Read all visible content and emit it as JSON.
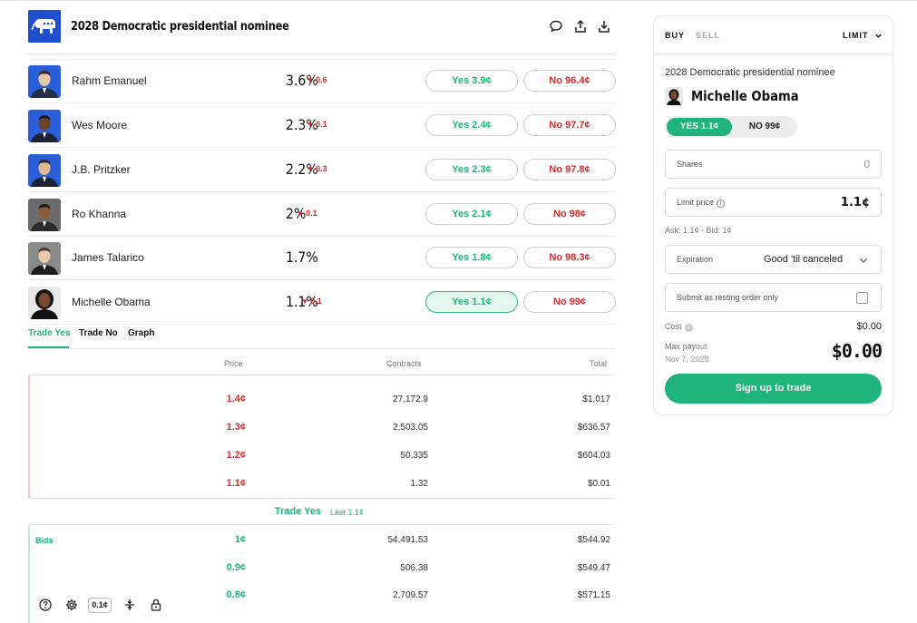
{
  "header": {
    "title": "2028 Democratic presidential nominee",
    "icons": [
      "comment-icon",
      "share-icon",
      "download-icon"
    ]
  },
  "candidates": [
    {
      "name": "Rahm Emanuel",
      "pct": "3.6%",
      "change": "0.6",
      "change_dir": "down",
      "yes": "Yes 3.9¢",
      "no": "No 96.4¢",
      "avatar_color": "#2b5fd9"
    },
    {
      "name": "Wes Moore",
      "pct": "2.3%",
      "change": "0.1",
      "change_dir": "down",
      "yes": "Yes 2.4¢",
      "no": "No 97.7¢",
      "avatar_color": "#2b5fd9"
    },
    {
      "name": "J.B. Pritzker",
      "pct": "2.2%",
      "change": "0.3",
      "change_dir": "down",
      "yes": "Yes 2.3¢",
      "no": "No 97.8¢",
      "avatar_color": "#2b5fd9"
    },
    {
      "name": "Ro Khanna",
      "pct": "2%",
      "change": "0.1",
      "change_dir": "down",
      "yes": "Yes 2.1¢",
      "no": "No 98¢",
      "avatar_color": "#6b6b6b"
    },
    {
      "name": "James Talarico",
      "pct": "1.7%",
      "change": "",
      "change_dir": "none",
      "yes": "Yes 1.8¢",
      "no": "No 98.3¢",
      "avatar_color": "#8a8a8a"
    },
    {
      "name": "Michelle Obama",
      "pct": "1.1%",
      "change": "0.1",
      "change_dir": "down",
      "yes": "Yes 1.1¢",
      "no": "No 99¢",
      "avatar_color": "#e9e9e9",
      "selected": true
    }
  ],
  "tabs": {
    "trade_yes": "Trade Yes",
    "trade_no": "Trade No",
    "graph": "Graph",
    "active": "trade_yes"
  },
  "orderbook": {
    "headers": {
      "price": "Price",
      "contracts": "Contracts",
      "total": "Total"
    },
    "asks": [
      {
        "price": "1.4¢",
        "contracts": "27,172.9",
        "total": "$1,017"
      },
      {
        "price": "1.3¢",
        "contracts": "2,503.05",
        "total": "$636.57"
      },
      {
        "price": "1.2¢",
        "contracts": "50,335",
        "total": "$604.03"
      },
      {
        "price": "1.1¢",
        "contracts": "1.32",
        "total": "$0.01"
      }
    ],
    "spread_title": "Trade Yes",
    "spread_last": "Last 1.1¢",
    "bids_label": "Bids",
    "bids": [
      {
        "price": "1¢",
        "contracts": "54,491.53",
        "total": "$544.92"
      },
      {
        "price": "0.9¢",
        "contracts": "506.38",
        "total": "$549.47"
      },
      {
        "price": "0.8¢",
        "contracts": "2,709.57",
        "total": "$571.15"
      }
    ]
  },
  "toolbar": {
    "tick_size": "0.1¢",
    "icons": [
      "help-icon",
      "settings-icon",
      "collapse-icon",
      "lock-icon"
    ]
  },
  "panel": {
    "buy": "BUY",
    "sell": "SELL",
    "order_type": "LIMIT",
    "market": "2028 Democratic presidential nominee",
    "candidate": "Michelle Obama",
    "yes_option": "YES 1.1¢",
    "no_option": "NO 99¢",
    "shares_label": "Shares",
    "shares_value": "0",
    "limit_label": "Limit price",
    "limit_value": "1.1¢",
    "ask_bid": "Ask: 1.1¢ · Bid: 1¢",
    "expiration_label": "Expiration",
    "expiration_value": "Good 'til canceled",
    "resting_label": "Submit as resting order only",
    "cost_label": "Cost",
    "cost_value": "$0.00",
    "payout_label": "Max payout",
    "payout_date": "Nov 7, 2028",
    "payout_value": "$0.00",
    "signup": "Sign up to trade"
  },
  "colors": {
    "accent_green": "#1fb57a",
    "down_red": "#d62b2b",
    "logo_blue": "#1f4fcf"
  }
}
